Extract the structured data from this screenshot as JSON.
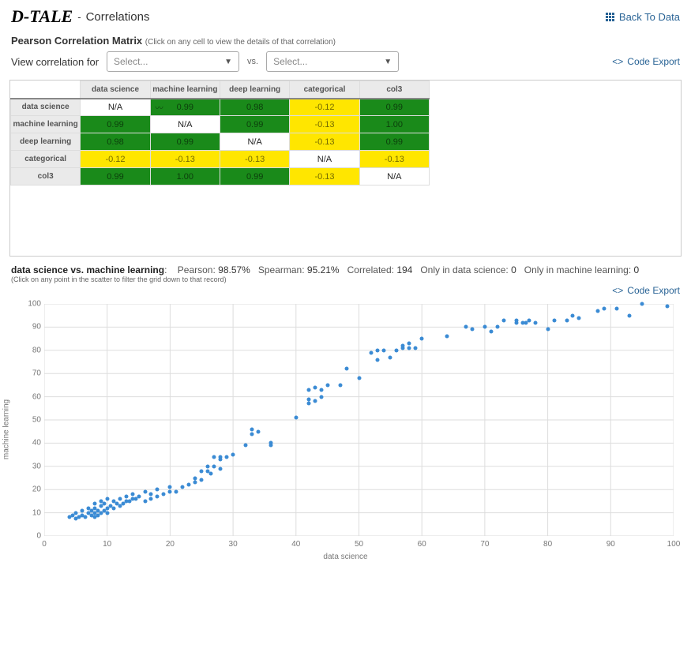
{
  "header": {
    "logo": "D-TALE",
    "separator": " - ",
    "title": "Correlations",
    "back_link": "Back To Data"
  },
  "matrix_section": {
    "title": "Pearson Correlation Matrix",
    "hint": "(Click on any cell to view the details of that correlation)",
    "view_label": "View correlation for",
    "select_placeholder": "Select...",
    "vs_label": "vs.",
    "code_export": "Code Export"
  },
  "matrix": {
    "columns": [
      "data science",
      "machine learning",
      "deep learning",
      "categorical",
      "col3"
    ],
    "rows": [
      "data science",
      "machine learning",
      "deep learning",
      "categorical",
      "col3"
    ],
    "cells": [
      [
        {
          "v": "N/A",
          "t": "na"
        },
        {
          "v": "0.99",
          "c": "#1a8a1a",
          "trend": true
        },
        {
          "v": "0.98",
          "c": "#1a8a1a"
        },
        {
          "v": "-0.12",
          "c": "#ffe600"
        },
        {
          "v": "0.99",
          "c": "#1a8a1a"
        }
      ],
      [
        {
          "v": "0.99",
          "c": "#1a8a1a"
        },
        {
          "v": "N/A",
          "t": "na"
        },
        {
          "v": "0.99",
          "c": "#1a8a1a"
        },
        {
          "v": "-0.13",
          "c": "#ffe600"
        },
        {
          "v": "1.00",
          "c": "#1a8a1a"
        }
      ],
      [
        {
          "v": "0.98",
          "c": "#1a8a1a"
        },
        {
          "v": "0.99",
          "c": "#1a8a1a"
        },
        {
          "v": "N/A",
          "t": "na"
        },
        {
          "v": "-0.13",
          "c": "#ffe600"
        },
        {
          "v": "0.99",
          "c": "#1a8a1a"
        }
      ],
      [
        {
          "v": "-0.12",
          "c": "#ffe600"
        },
        {
          "v": "-0.13",
          "c": "#ffe600"
        },
        {
          "v": "-0.13",
          "c": "#ffe600"
        },
        {
          "v": "N/A",
          "t": "na"
        },
        {
          "v": "-0.13",
          "c": "#ffe600"
        }
      ],
      [
        {
          "v": "0.99",
          "c": "#1a8a1a"
        },
        {
          "v": "1.00",
          "c": "#1a8a1a"
        },
        {
          "v": "0.99",
          "c": "#1a8a1a"
        },
        {
          "v": "-0.13",
          "c": "#ffe600"
        },
        {
          "v": "N/A",
          "t": "na"
        }
      ]
    ]
  },
  "scatter_header": {
    "pair_label": "data science vs. machine learning",
    "stats": [
      {
        "name": "Pearson",
        "value": "98.57%"
      },
      {
        "name": "Spearman",
        "value": "95.21%"
      },
      {
        "name": "Correlated",
        "value": "194"
      },
      {
        "name": "Only in data science",
        "value": "0"
      },
      {
        "name": "Only in machine learning",
        "value": "0"
      }
    ],
    "hint": "(Click on any point in the scatter to filter the grid down to that record)",
    "code_export": "Code Export"
  },
  "chart": {
    "xlabel": "data science",
    "ylabel": "machine learning",
    "xlim": [
      0,
      100
    ],
    "ylim": [
      0,
      100
    ],
    "xtick_step": 10,
    "ytick_step": 10,
    "point_color": "#3b8bd4",
    "grid_color": "#dddddd",
    "background_color": "#ffffff",
    "points": [
      [
        4,
        8
      ],
      [
        4.5,
        9
      ],
      [
        5,
        7.5
      ],
      [
        5,
        10
      ],
      [
        5.5,
        8
      ],
      [
        6,
        9
      ],
      [
        6,
        11
      ],
      [
        6.5,
        8
      ],
      [
        7,
        10
      ],
      [
        7,
        12
      ],
      [
        7.5,
        9
      ],
      [
        7.5,
        11
      ],
      [
        8,
        8
      ],
      [
        8,
        10
      ],
      [
        8,
        12
      ],
      [
        8,
        14
      ],
      [
        8.5,
        9
      ],
      [
        8.5,
        11
      ],
      [
        9,
        10
      ],
      [
        9,
        13
      ],
      [
        9,
        15
      ],
      [
        9.5,
        11
      ],
      [
        9.5,
        14
      ],
      [
        10,
        10
      ],
      [
        10,
        12
      ],
      [
        10,
        16
      ],
      [
        10.5,
        13
      ],
      [
        11,
        12
      ],
      [
        11,
        15
      ],
      [
        11.5,
        14
      ],
      [
        12,
        13
      ],
      [
        12,
        16
      ],
      [
        12.5,
        14
      ],
      [
        13,
        15
      ],
      [
        13,
        17
      ],
      [
        13.5,
        15
      ],
      [
        14,
        16
      ],
      [
        14,
        18
      ],
      [
        14.5,
        16
      ],
      [
        15,
        17
      ],
      [
        16,
        15
      ],
      [
        16,
        19
      ],
      [
        17,
        16
      ],
      [
        17,
        18
      ],
      [
        18,
        17
      ],
      [
        18,
        20
      ],
      [
        19,
        18
      ],
      [
        20,
        19
      ],
      [
        20,
        21
      ],
      [
        21,
        19
      ],
      [
        22,
        21
      ],
      [
        23,
        22
      ],
      [
        24,
        23
      ],
      [
        24,
        25
      ],
      [
        25,
        24
      ],
      [
        25,
        28
      ],
      [
        26,
        28
      ],
      [
        26,
        30
      ],
      [
        26.5,
        27
      ],
      [
        27,
        30
      ],
      [
        27,
        34
      ],
      [
        28,
        29
      ],
      [
        28,
        33
      ],
      [
        28,
        34
      ],
      [
        29,
        34
      ],
      [
        30,
        35
      ],
      [
        32,
        39
      ],
      [
        33,
        44
      ],
      [
        33,
        46
      ],
      [
        34,
        45
      ],
      [
        36,
        39
      ],
      [
        36,
        40
      ],
      [
        40,
        51
      ],
      [
        42,
        57
      ],
      [
        42,
        59
      ],
      [
        42,
        63
      ],
      [
        43,
        58
      ],
      [
        43,
        64
      ],
      [
        44,
        60
      ],
      [
        44,
        63
      ],
      [
        45,
        65
      ],
      [
        47,
        65
      ],
      [
        48,
        72
      ],
      [
        50,
        68
      ],
      [
        52,
        79
      ],
      [
        53,
        76
      ],
      [
        53,
        80
      ],
      [
        54,
        80
      ],
      [
        55,
        77
      ],
      [
        56,
        80
      ],
      [
        57,
        81
      ],
      [
        57,
        82
      ],
      [
        58,
        81
      ],
      [
        58,
        83
      ],
      [
        59,
        81
      ],
      [
        60,
        85
      ],
      [
        64,
        86
      ],
      [
        67,
        90
      ],
      [
        68,
        89
      ],
      [
        70,
        90
      ],
      [
        71,
        88
      ],
      [
        72,
        90
      ],
      [
        73,
        93
      ],
      [
        75,
        92
      ],
      [
        75,
        93
      ],
      [
        76,
        92
      ],
      [
        76.5,
        92
      ],
      [
        77,
        93
      ],
      [
        78,
        92
      ],
      [
        80,
        89
      ],
      [
        81,
        93
      ],
      [
        83,
        93
      ],
      [
        84,
        95
      ],
      [
        85,
        94
      ],
      [
        88,
        97
      ],
      [
        89,
        98
      ],
      [
        91,
        98
      ],
      [
        93,
        95
      ],
      [
        95,
        100
      ],
      [
        99,
        99
      ]
    ]
  }
}
